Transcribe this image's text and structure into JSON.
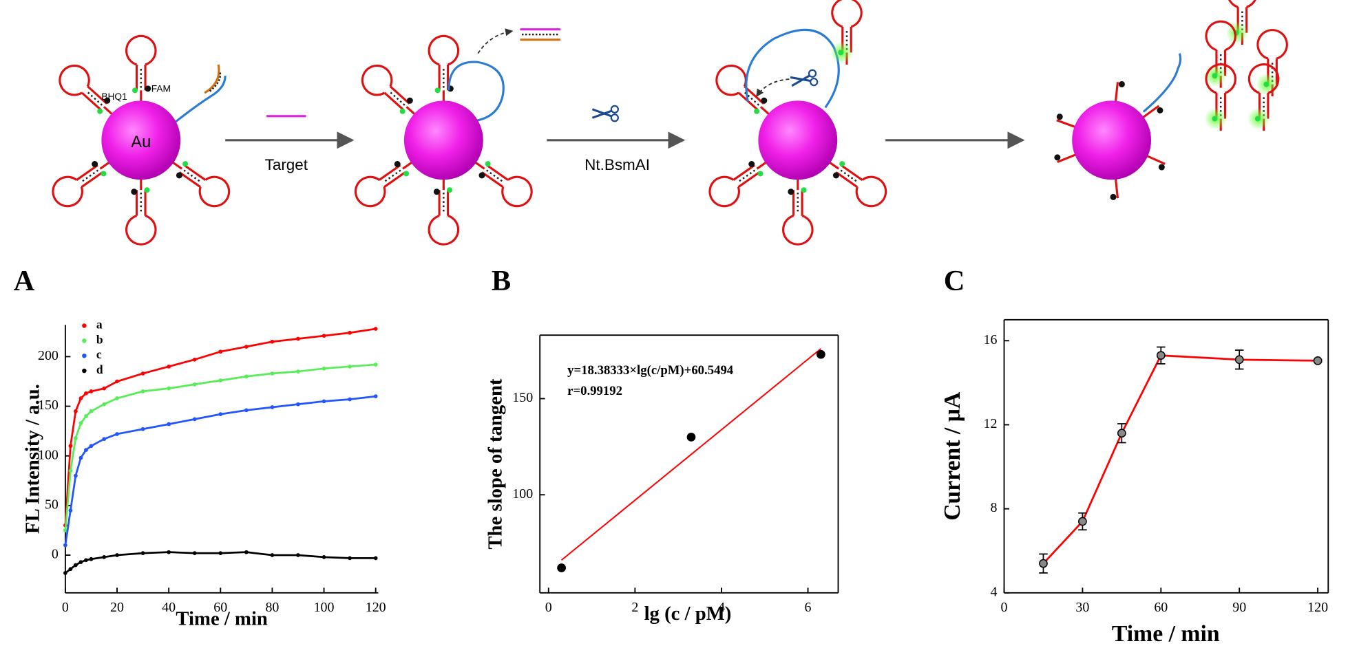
{
  "diagram": {
    "nanoparticle_label": "Au",
    "quencher_label": "BHQ1",
    "fluorophore_label": "FAM",
    "step_1_label": "Target",
    "step_2_label": "Nt.BsmAI"
  },
  "chart_data": [
    {
      "type": "line",
      "panel": "A",
      "xlabel": "Time / min",
      "ylabel": "FL Intensity / a.u.",
      "x": [
        0,
        2,
        4,
        6,
        8,
        10,
        15,
        20,
        30,
        40,
        50,
        60,
        70,
        80,
        90,
        100,
        110,
        120
      ],
      "series": [
        {
          "name": "a",
          "color": "#ff0000",
          "values": [
            30,
            110,
            145,
            158,
            163,
            165,
            168,
            175,
            183,
            190,
            197,
            205,
            210,
            215,
            218,
            221,
            224,
            228
          ]
        },
        {
          "name": "b",
          "color": "#55ee55",
          "values": [
            25,
            85,
            118,
            133,
            140,
            145,
            152,
            158,
            165,
            168,
            172,
            176,
            180,
            183,
            185,
            188,
            190,
            192
          ]
        },
        {
          "name": "c",
          "color": "#2255ff",
          "values": [
            10,
            45,
            80,
            98,
            106,
            110,
            117,
            122,
            127,
            132,
            137,
            142,
            146,
            149,
            152,
            155,
            157,
            160
          ]
        },
        {
          "name": "d",
          "color": "#000000",
          "values": [
            -18,
            -14,
            -10,
            -7,
            -5,
            -4,
            -2,
            0,
            2,
            3,
            2,
            2,
            3,
            0,
            0,
            -2,
            -3,
            -3
          ]
        }
      ],
      "xlim": [
        0,
        121
      ],
      "ylim": [
        -38,
        232
      ],
      "xticks": [
        0,
        20,
        40,
        60,
        80,
        100,
        120
      ],
      "yticks": [
        0,
        50,
        100,
        150,
        200
      ],
      "markers": true,
      "legend": "upper left"
    },
    {
      "type": "scatter",
      "panel": "B",
      "xlabel": "lg (c / pM)",
      "ylabel": "The slope of tangent",
      "x": [
        0.3,
        3.3,
        6.3
      ],
      "values": [
        62,
        130,
        173
      ],
      "color": "#000000",
      "fit": {
        "x": [
          0.3,
          6.3
        ],
        "values": [
          66,
          176
        ],
        "color": "#ff0000"
      },
      "annotations": [
        "y=18.38333×lg(c/pM)+60.5494",
        "r=0.99192"
      ],
      "xlim": [
        -0.2,
        6.7
      ],
      "ylim": [
        49,
        183
      ],
      "xticks": [
        0,
        2,
        4,
        6
      ],
      "yticks": [
        100,
        150
      ]
    },
    {
      "type": "line",
      "panel": "C",
      "xlabel": "Time / min",
      "ylabel": "Current / μA",
      "x": [
        15,
        30,
        45,
        60,
        90,
        120
      ],
      "values": [
        5.4,
        7.4,
        11.6,
        15.3,
        15.1,
        15.05
      ],
      "errors": [
        0.45,
        0.4,
        0.45,
        0.4,
        0.45,
        0.05
      ],
      "color": "#ff0000",
      "marker_color": "#888888",
      "xlim": [
        0,
        124
      ],
      "ylim": [
        4,
        17
      ],
      "xticks": [
        0,
        30,
        60,
        90,
        120
      ],
      "yticks": [
        4,
        8,
        12,
        16
      ],
      "markers": true
    }
  ]
}
